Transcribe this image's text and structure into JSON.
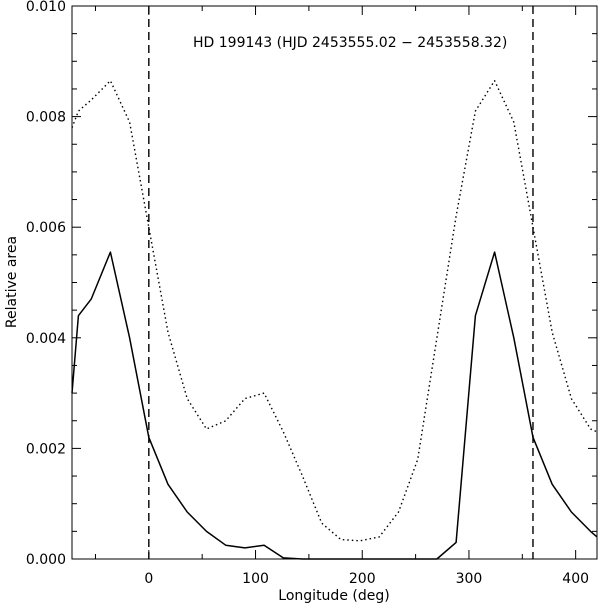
{
  "chart_data": {
    "type": "line",
    "title": "HD 199143 (HJD 2453555.02 − 2453558.32)",
    "xlabel": "Longitude (deg)",
    "ylabel": "Relative area",
    "xlim": [
      -72,
      420
    ],
    "ylim": [
      0,
      0.01
    ],
    "xticks": [
      0,
      100,
      200,
      300,
      400
    ],
    "xtick_labels": [
      "0",
      "100",
      "200",
      "300",
      "400"
    ],
    "yticks": [
      0,
      0.002,
      0.004,
      0.006,
      0.008,
      0.01
    ],
    "ytick_labels": [
      "0.000",
      "0.002",
      "0.004",
      "0.006",
      "0.008",
      "0.010"
    ],
    "grid": false,
    "vlines": [
      0,
      360
    ],
    "series": [
      {
        "style": "solid",
        "x": [
          -72,
          -66,
          -54,
          -36,
          -18,
          0,
          18,
          36,
          54,
          72,
          90,
          108,
          126,
          144,
          162,
          180,
          198,
          216,
          234,
          252,
          270,
          288,
          306,
          324,
          342,
          360,
          378,
          396,
          414,
          420
        ],
        "y": [
          0.003,
          0.0044,
          0.0047,
          0.00555,
          0.004,
          0.0022,
          0.00135,
          0.00085,
          0.0005,
          0.00025,
          0.0002,
          0.00025,
          2e-05,
          0,
          0,
          0,
          0,
          0,
          0,
          0,
          0,
          0.0003,
          0.0044,
          0.00555,
          0.004,
          0.0022,
          0.00135,
          0.00085,
          0.0005,
          0.0004
        ]
      },
      {
        "style": "dotted",
        "x": [
          -72,
          -66,
          -54,
          -36,
          -18,
          0,
          18,
          36,
          54,
          72,
          90,
          108,
          126,
          144,
          162,
          180,
          198,
          216,
          234,
          252,
          270,
          288,
          306,
          324,
          342,
          360,
          378,
          396,
          414,
          420
        ],
        "y": [
          0.0078,
          0.0081,
          0.0083,
          0.00865,
          0.0079,
          0.006,
          0.0041,
          0.0029,
          0.00235,
          0.0025,
          0.0029,
          0.003,
          0.0023,
          0.0015,
          0.00065,
          0.00035,
          0.00033,
          0.0004,
          0.00085,
          0.0018,
          0.004,
          0.0062,
          0.0081,
          0.00865,
          0.0079,
          0.006,
          0.0041,
          0.0029,
          0.00235,
          0.0023
        ]
      }
    ]
  }
}
